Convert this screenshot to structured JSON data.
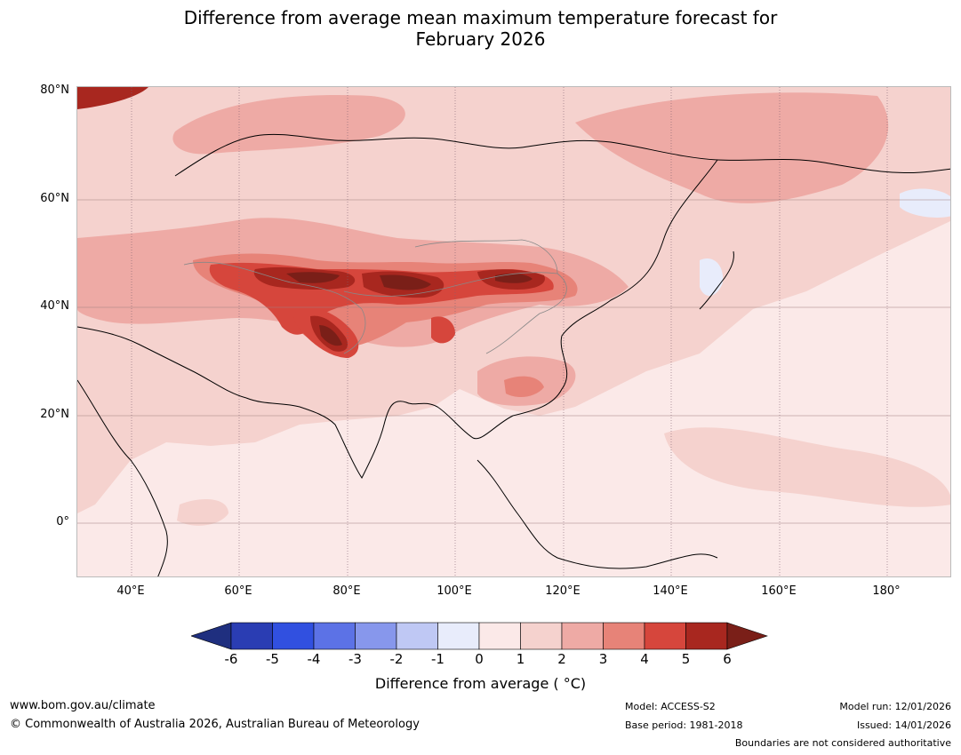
{
  "title_line1": "Difference from average mean maximum temperature forecast for",
  "title_line2": "February 2026",
  "lat_labels": [
    "80°N",
    "60°N",
    "40°N",
    "20°N",
    "0°"
  ],
  "lon_labels": [
    "40°E",
    "60°E",
    "80°E",
    "100°E",
    "120°E",
    "140°E",
    "160°E",
    "180°"
  ],
  "colorbar": {
    "ticks": [
      "-6",
      "-5",
      "-4",
      "-3",
      "-2",
      "-1",
      "0",
      "1",
      "2",
      "3",
      "4",
      "5",
      "6"
    ],
    "colors": [
      "#1f2f7f",
      "#2a3db3",
      "#3150e0",
      "#5c72e6",
      "#8797ec",
      "#bfc8f4",
      "#e8ecfb",
      "#fbe9e8",
      "#f5d2ce",
      "#eeaaa5",
      "#e78378",
      "#d6463c",
      "#a8271f",
      "#7a1f18"
    ],
    "label": "Difference from average ( °C)"
  },
  "footer": {
    "url": "www.bom.gov.au/climate",
    "copyright": "© Commonwealth of Australia 2026, Australian Bureau of Meteorology",
    "model": "Model: ACCESS-S2",
    "base_period": "Base period: 1981-2018",
    "model_run": "Model run: 12/01/2026",
    "issued": "Issued: 14/01/2026",
    "boundaries": "Boundaries are not considered authoritative"
  }
}
